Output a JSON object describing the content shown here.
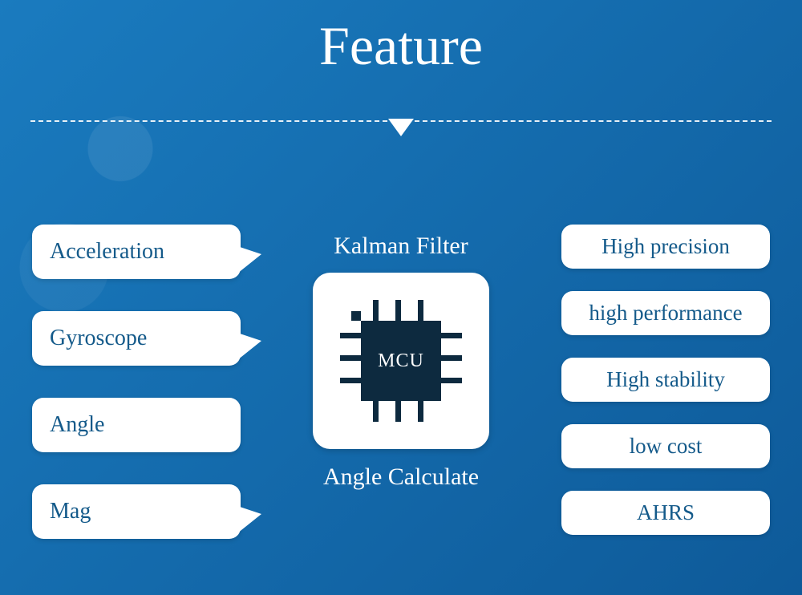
{
  "title": "Feature",
  "background": {
    "bg1": "#1a7bbf",
    "bg2": "#0e5a99"
  },
  "divider_color": "#ffffff",
  "label_color": "#145a8a",
  "chip_color": "#0d2a3f",
  "left_items": [
    {
      "label": "Acceleration",
      "tail": true
    },
    {
      "label": "Gyroscope",
      "tail": true
    },
    {
      "label": "Angle",
      "tail": false
    },
    {
      "label": "Mag",
      "tail": true
    }
  ],
  "right_items": [
    {
      "label": "High precision"
    },
    {
      "label": "high performance"
    },
    {
      "label": "High stability"
    },
    {
      "label": "low cost"
    },
    {
      "label": "AHRS"
    }
  ],
  "center": {
    "top_label": "Kalman Filter",
    "chip_text": "MCU",
    "bottom_label": "Angle Calculate"
  }
}
